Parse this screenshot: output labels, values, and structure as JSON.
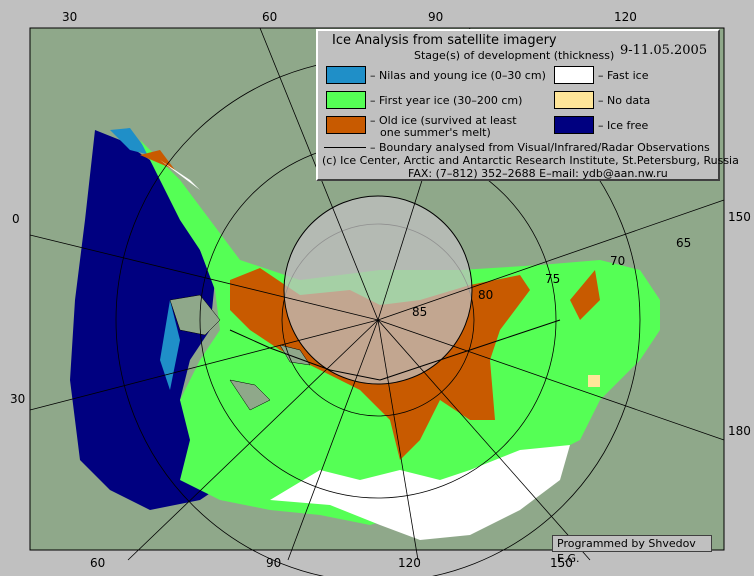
{
  "legend": {
    "title": "Ice Analysis from satellite imagery",
    "subtitle": "Stage(s) of development (thickness)",
    "date": "9-11.05.2005",
    "items": [
      {
        "label": "– Nilas and young ice (0–30 cm)",
        "color": "#1f8fc8"
      },
      {
        "label": "– Fast ice",
        "color": "#ffffff"
      },
      {
        "label": "– First year ice (30–200 cm)",
        "color": "#55ff55"
      },
      {
        "label": "– No data",
        "color": "#ffe699"
      },
      {
        "label": "– Old ice (survived at least",
        "color": "#c85a00"
      },
      {
        "label": "– Ice free",
        "color": "#000080"
      }
    ],
    "old_ice_line2": "one summer's melt)",
    "boundary": "– Boundary analysed from Visual/Infrared/Radar Observations",
    "copyright": "(c) Ice Center, Arctic and Antarctic Research Institute, St.Petersburg, Russia",
    "fax": "FAX: (7–812) 352–2688 E–mail: ydb@aan.nw.ru"
  },
  "grid_labels": {
    "lon_top": [
      "30",
      "60",
      "90",
      "120"
    ],
    "lon_bottom": [
      "60",
      "90",
      "120",
      "150"
    ],
    "lon_left": [
      "0",
      "30"
    ],
    "lon_right": [
      "150",
      "180"
    ],
    "lat": [
      "85",
      "80",
      "75",
      "70",
      "65"
    ]
  },
  "credit": "Programmed by Shvedov E.G.",
  "colors": {
    "land": "#8fa88a",
    "frame": "#c0c0c0",
    "background": "#c0c0c0"
  }
}
